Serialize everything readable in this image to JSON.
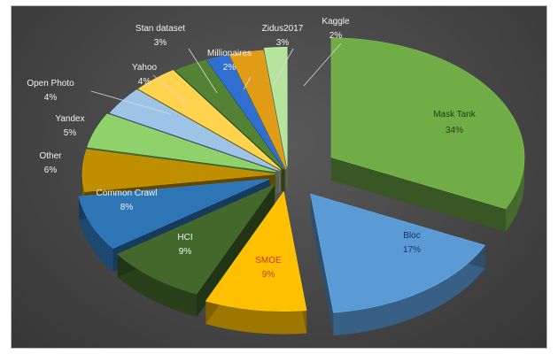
{
  "chart_data": {
    "type": "pie",
    "style": "exploded-3d",
    "title": "",
    "slices": [
      {
        "label": "Mask Tank",
        "pct": "34%",
        "value": 34,
        "color": "#70ad47"
      },
      {
        "label": "Bloc",
        "pct": "17%",
        "value": 17,
        "color": "#5b9bd5"
      },
      {
        "label": "SMOE",
        "pct": "9%",
        "value": 9,
        "color": "#ffc000"
      },
      {
        "label": "HCI",
        "pct": "9%",
        "value": 9,
        "color": "#43682b"
      },
      {
        "label": "Common Crawl",
        "pct": "8%",
        "value": 8,
        "color": "#2e75b6"
      },
      {
        "label": "Other",
        "pct": "6%",
        "value": 6,
        "color": "#bf8f00"
      },
      {
        "label": "Yandex",
        "pct": "5%",
        "value": 5,
        "color": "#8fd16b"
      },
      {
        "label": "Open Photo",
        "pct": "4%",
        "value": 4,
        "color": "#9dc3e6"
      },
      {
        "label": "Yahoo",
        "pct": "4%",
        "value": 4,
        "color": "#ffd34d"
      },
      {
        "label": "Stan dataset",
        "pct": "3%",
        "value": 3,
        "color": "#548235"
      },
      {
        "label": "Millionaires",
        "pct": "2%",
        "value": 2,
        "color": "#2f6fd0"
      },
      {
        "label": "Zidus2017",
        "pct": "3%",
        "value": 3,
        "color": "#e09c16"
      },
      {
        "label": "Kaggle",
        "pct": "2%",
        "value": 2,
        "color": "#b5e59c"
      }
    ]
  }
}
